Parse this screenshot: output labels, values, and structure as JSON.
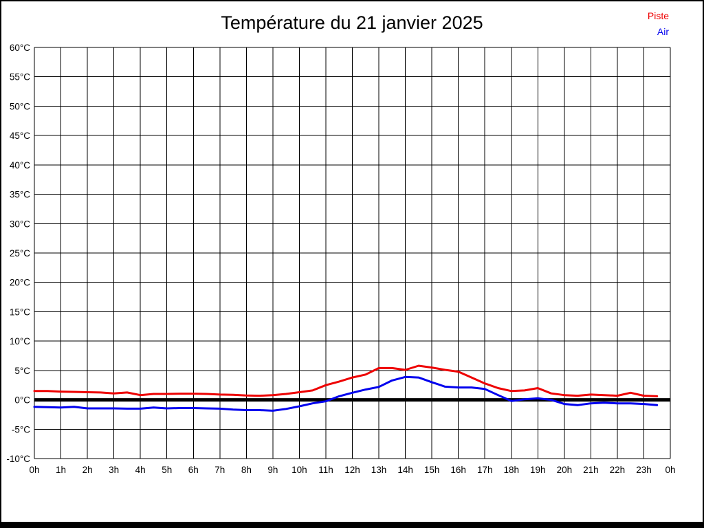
{
  "chart_data": {
    "type": "line",
    "title": "Température du 21 janvier 2025",
    "xlabel": "",
    "ylabel": "",
    "xlim": [
      0,
      24
    ],
    "ylim": [
      -10,
      60
    ],
    "grid": true,
    "zero_line": true,
    "legend_position": "top-right",
    "x_ticks": [
      "0h",
      "1h",
      "2h",
      "3h",
      "4h",
      "5h",
      "6h",
      "7h",
      "8h",
      "9h",
      "10h",
      "11h",
      "12h",
      "13h",
      "14h",
      "15h",
      "16h",
      "17h",
      "18h",
      "19h",
      "20h",
      "21h",
      "22h",
      "23h",
      "0h"
    ],
    "y_ticks": [
      "60°C",
      "55°C",
      "50°C",
      "45°C",
      "40°C",
      "35°C",
      "30°C",
      "25°C",
      "20°C",
      "15°C",
      "10°C",
      "5°C",
      "0°C",
      "-5°C",
      "-10°C"
    ],
    "series": [
      {
        "name": "Piste",
        "color": "#ee0000",
        "x": [
          0,
          0.5,
          1,
          1.5,
          2,
          2.5,
          3,
          3.5,
          4,
          4.5,
          5,
          5.5,
          6,
          6.5,
          7,
          7.5,
          8,
          8.5,
          9,
          9.5,
          10,
          10.5,
          11,
          11.5,
          12,
          12.5,
          13,
          13.5,
          14,
          14.5,
          15,
          15.5,
          16,
          16.5,
          17,
          17.5,
          18,
          18.5,
          19,
          19.5,
          20,
          20.5,
          21,
          21.5,
          22,
          22.5,
          23,
          23.5
        ],
        "values": [
          1.5,
          1.5,
          1.4,
          1.35,
          1.3,
          1.25,
          1.1,
          1.25,
          0.8,
          1.0,
          1.0,
          1.05,
          1.05,
          1.0,
          0.9,
          0.85,
          0.75,
          0.7,
          0.8,
          1.0,
          1.3,
          1.6,
          2.5,
          3.1,
          3.8,
          4.3,
          5.4,
          5.4,
          5.1,
          5.8,
          5.5,
          5.1,
          4.8,
          3.8,
          2.8,
          2.0,
          1.5,
          1.6,
          2.0,
          1.1,
          0.8,
          0.7,
          0.9,
          0.8,
          0.7,
          1.2,
          0.7,
          0.6
        ]
      },
      {
        "name": "Air",
        "color": "#0000ee",
        "x": [
          0,
          0.5,
          1,
          1.5,
          2,
          2.5,
          3,
          3.5,
          4,
          4.5,
          5,
          5.5,
          6,
          6.5,
          7,
          7.5,
          8,
          8.5,
          9,
          9.5,
          10,
          10.5,
          11,
          11.5,
          12,
          12.5,
          13,
          13.5,
          14,
          14.5,
          15,
          15.5,
          16,
          16.5,
          17,
          17.5,
          18,
          18.5,
          19,
          19.5,
          20,
          20.5,
          21,
          21.5,
          22,
          22.5,
          23,
          23.5
        ],
        "values": [
          -1.2,
          -1.25,
          -1.3,
          -1.2,
          -1.45,
          -1.45,
          -1.45,
          -1.5,
          -1.5,
          -1.3,
          -1.45,
          -1.4,
          -1.4,
          -1.45,
          -1.5,
          -1.65,
          -1.75,
          -1.75,
          -1.85,
          -1.55,
          -1.1,
          -0.6,
          -0.25,
          0.6,
          1.2,
          1.75,
          2.2,
          3.3,
          3.9,
          3.8,
          3.0,
          2.25,
          2.1,
          2.1,
          1.85,
          0.8,
          -0.2,
          0.1,
          0.25,
          0.0,
          -0.7,
          -0.9,
          -0.6,
          -0.5,
          -0.6,
          -0.6,
          -0.7,
          -0.9
        ]
      }
    ]
  }
}
